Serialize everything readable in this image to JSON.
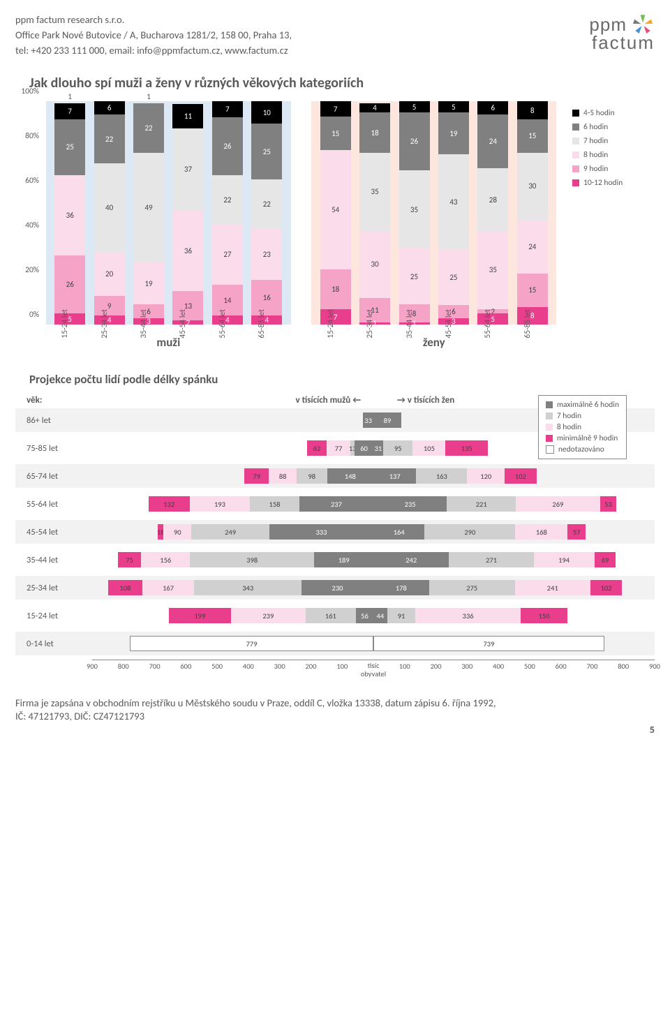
{
  "company": {
    "name": "ppm factum research s.r.o.",
    "address": "Office Park Nové Butovice / A, Bucharova 1281/2, 158 00, Praha 13,",
    "contact": "tel: +420 233 111 000, email: info@ppmfactum.cz, www.factum.cz",
    "logo_top": "ppm",
    "logo_bottom": "factum"
  },
  "chart1": {
    "title": "Jak dlouho spí muži a ženy v různých věkových kategoriích",
    "ylabels": [
      "0%",
      "20%",
      "40%",
      "60%",
      "80%",
      "100%"
    ],
    "panel_bg_m": "#dce8f4",
    "panel_bg_f": "#fce6de",
    "panel_label_m": "muži",
    "panel_label_f": "ženy",
    "series": [
      {
        "key": "s1012",
        "label": "10-12 hodin",
        "color": "#e83e8c"
      },
      {
        "key": "s9",
        "label": "9 hodin",
        "color": "#f5a3c7"
      },
      {
        "key": "s8",
        "label": "8 hodin",
        "color": "#fadceb"
      },
      {
        "key": "s7",
        "label": "7 hodin",
        "color": "#e6e6e6"
      },
      {
        "key": "s6",
        "label": "6 hodin",
        "color": "#808080"
      },
      {
        "key": "s45",
        "label": "4-5 hodin",
        "color": "#000000"
      }
    ],
    "cats_m": [
      "15-24 let",
      "25-34 let",
      "35-44 let",
      "45-54 let",
      "55-64 let",
      "65-85 let"
    ],
    "cats_f": [
      "15-24 let",
      "25-34 let",
      "35-44 let",
      "45-54 let",
      "55-64 let",
      "65-85 let"
    ],
    "bars_m": [
      {
        "s1012": 5,
        "s9": 26,
        "s8": 36,
        "s7": 0,
        "s6": 25,
        "s45": 7,
        "top": 1
      },
      {
        "s1012": 4,
        "s9": 9,
        "s8": 20,
        "s7": 40,
        "s6": 22,
        "s45": 6,
        "top": 0
      },
      {
        "s1012": 3,
        "s9": 6,
        "s8": 19,
        "s7": 49,
        "s6": 22,
        "s45": 0,
        "top": 1
      },
      {
        "s1012": 2,
        "s9": 13,
        "s8": 36,
        "s7": 37,
        "s6": 0,
        "s45": 11,
        "top": 0
      },
      {
        "s1012": 4,
        "s9": 14,
        "s8": 27,
        "s7": 22,
        "s6": 26,
        "s45": 7,
        "top": 0
      },
      {
        "s1012": 4,
        "s9": 16,
        "s8": 23,
        "s7": 22,
        "s6": 25,
        "s45": 10,
        "top": 0
      }
    ],
    "bars_f": [
      {
        "s1012": 7,
        "s9": 18,
        "s8": 54,
        "s7": 0,
        "s6": 15,
        "s45": 7,
        "top": 0
      },
      {
        "s1012": 1,
        "s9": 11,
        "s8": 30,
        "s7": 35,
        "s6": 18,
        "s45": 4,
        "top": 0
      },
      {
        "s1012": 1,
        "s9": 8,
        "s8": 25,
        "s7": 35,
        "s6": 26,
        "s45": 5,
        "top": 0
      },
      {
        "s1012": 3,
        "s9": 6,
        "s8": 25,
        "s7": 43,
        "s6": 19,
        "s45": 5,
        "top": 0
      },
      {
        "s1012": 5,
        "s9": 2,
        "s8": 35,
        "s7": 28,
        "s6": 24,
        "s45": 6,
        "top": 0
      },
      {
        "s1012": 8,
        "s9": 15,
        "s8": 24,
        "s7": 30,
        "s6": 15,
        "s45": 8,
        "top": 0
      }
    ]
  },
  "chart2": {
    "title": "Projekce počtu lidí podle délky spánku",
    "row_label": "věk:",
    "left_header": "v tisících mužů",
    "right_header": "v tisících žen",
    "scale_max": 900,
    "xticks": [
      900,
      800,
      700,
      600,
      500,
      400,
      300,
      200,
      100
    ],
    "xticks_r": [
      100,
      200,
      300,
      400,
      500,
      600,
      700,
      800,
      900
    ],
    "center_label_top": "tisíc",
    "center_label_bot": "obyvatel",
    "series": [
      {
        "key": "min9",
        "label": "minimálně 9 hodin",
        "color": "#e83e8c"
      },
      {
        "key": "h8",
        "label": "8 hodin",
        "color": "#fadceb"
      },
      {
        "key": "h7",
        "label": "7 hodin",
        "color": "#d0d0d0"
      },
      {
        "key": "max6",
        "label": "maximálně 6 hodin",
        "color": "#808080"
      },
      {
        "key": "nd",
        "label": "nedotazováno",
        "color": "#ffffff"
      }
    ],
    "legend_order": [
      "max6",
      "h7",
      "h8",
      "min9",
      "nd"
    ],
    "rows": [
      {
        "cat": "86+ let",
        "left": {
          "min9": 0,
          "h8": 0,
          "h7": 0,
          "max6": 33,
          "nd": 0
        },
        "right": {
          "max6": 89,
          "h7": 0,
          "h8": 0,
          "min9": 0,
          "nd": 0
        }
      },
      {
        "cat": "75-85 let",
        "left": {
          "min9": 62,
          "h8": 77,
          "h7": 13,
          "max6": 60,
          "nd": 0
        },
        "right": {
          "max6": 31,
          "h7": 95,
          "h8": 105,
          "min9": 135,
          "nd": 0
        }
      },
      {
        "cat": "65-74 let",
        "left": {
          "min9": 79,
          "h8": 88,
          "h7": 98,
          "max6": 148,
          "nd": 0
        },
        "right": {
          "max6": 137,
          "h7": 163,
          "h8": 120,
          "min9": 102,
          "nd": 0
        }
      },
      {
        "cat": "55-64 let",
        "left": {
          "min9": 132,
          "h8": 193,
          "h7": 158,
          "max6": 237,
          "nd": 0
        },
        "right": {
          "max6": 235,
          "h7": 221,
          "h8": 269,
          "min9": 53,
          "nd": 0
        }
      },
      {
        "cat": "45-54 let",
        "left": {
          "min9": 18,
          "h8": 90,
          "h7": 249,
          "max6": 333,
          "nd": 0
        },
        "right": {
          "max6": 164,
          "h7": 290,
          "h8": 168,
          "min9": 57,
          "nd": 0
        }
      },
      {
        "cat": "35-44 let",
        "left": {
          "min9": 75,
          "h8": 156,
          "h7": 398,
          "max6": 189,
          "nd": 0
        },
        "right": {
          "max6": 242,
          "h7": 271,
          "h8": 194,
          "min9": 69,
          "nd": 0
        }
      },
      {
        "cat": "25-34 let",
        "left": {
          "min9": 108,
          "h8": 167,
          "h7": 343,
          "max6": 230,
          "nd": 0
        },
        "right": {
          "max6": 178,
          "h7": 275,
          "h8": 241,
          "min9": 102,
          "nd": 0
        }
      },
      {
        "cat": "15-24 let",
        "left": {
          "min9": 199,
          "h8": 239,
          "h7": 161,
          "max6": 56,
          "nd": 0
        },
        "right": {
          "max6": 44,
          "h7": 91,
          "h8": 336,
          "min9": 150,
          "nd": 0
        }
      },
      {
        "cat": "0-14 let",
        "left": {
          "nd": 779,
          "min9": 0,
          "h8": 0,
          "h7": 0,
          "max6": 0
        },
        "right": {
          "nd": 739,
          "max6": 0,
          "h7": 0,
          "h8": 0,
          "min9": 0
        }
      }
    ]
  },
  "footer": {
    "line1": "Firma je zapsána v obchodním rejstříku u Městského soudu v Praze, oddíl C, vložka 13338, datum zápisu 6. října 1992,",
    "line2": "IČ: 47121793, DIČ: CZ47121793",
    "page": "5"
  }
}
